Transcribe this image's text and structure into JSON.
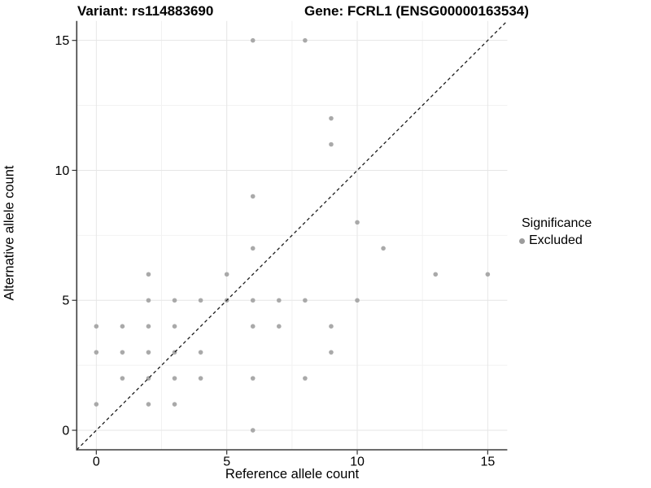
{
  "header": {
    "variant_title": "Variant: rs114883690",
    "gene_title": "Gene: FCRL1 (ENSG00000163534)"
  },
  "axes": {
    "x_label": "Reference allele count",
    "y_label": "Alternative allele count"
  },
  "legend": {
    "title": "Significance",
    "items": [
      {
        "label": "Excluded",
        "color": "#9c9c9c"
      }
    ]
  },
  "colors": {
    "background": "#ffffff",
    "point": "#a9a9a9",
    "axis_line": "#3d3d3d",
    "tick": "#333333",
    "tick_label": "#000000",
    "grid_major": "#e6e6e6",
    "grid_minor": "#f2f2f2",
    "reference_line": "#1c1c1c"
  },
  "chart_data": {
    "type": "scatter",
    "title": "Variant: rs114883690 / Gene: FCRL1 (ENSG00000163534)",
    "xlabel": "Reference allele count",
    "ylabel": "Alternative allele count",
    "xlim": [
      -0.75,
      15.75
    ],
    "ylim": [
      -0.75,
      15.75
    ],
    "x_ticks": [
      0,
      5,
      10,
      15
    ],
    "y_ticks": [
      0,
      5,
      10,
      15
    ],
    "minor_gridlines_x": [
      2.5,
      7.5,
      12.5
    ],
    "minor_gridlines_y": [
      2.5,
      7.5,
      12.5
    ],
    "grid": true,
    "legend_position": "right-middle",
    "series": [
      {
        "name": "Excluded",
        "color": "#a9a9a9",
        "points": [
          [
            0,
            1
          ],
          [
            0,
            3
          ],
          [
            0,
            4
          ],
          [
            1,
            2
          ],
          [
            1,
            3
          ],
          [
            1,
            4
          ],
          [
            2,
            1
          ],
          [
            2,
            2
          ],
          [
            2,
            3
          ],
          [
            2,
            4
          ],
          [
            2,
            5
          ],
          [
            2,
            6
          ],
          [
            3,
            1
          ],
          [
            3,
            2
          ],
          [
            3,
            3
          ],
          [
            3,
            4
          ],
          [
            3,
            5
          ],
          [
            4,
            2
          ],
          [
            4,
            3
          ],
          [
            4,
            5
          ],
          [
            5,
            5
          ],
          [
            5,
            6
          ],
          [
            6,
            0
          ],
          [
            6,
            2
          ],
          [
            6,
            4
          ],
          [
            6,
            5
          ],
          [
            6,
            7
          ],
          [
            6,
            9
          ],
          [
            6,
            15
          ],
          [
            7,
            4
          ],
          [
            7,
            5
          ],
          [
            8,
            2
          ],
          [
            8,
            5
          ],
          [
            8,
            15
          ],
          [
            9,
            3
          ],
          [
            9,
            4
          ],
          [
            9,
            11
          ],
          [
            9,
            12
          ],
          [
            10,
            5
          ],
          [
            10,
            8
          ],
          [
            11,
            7
          ],
          [
            13,
            6
          ],
          [
            15,
            6
          ]
        ]
      }
    ],
    "reference_line": {
      "style": "dashed",
      "from": [
        -0.75,
        -0.75
      ],
      "to": [
        15.75,
        15.75
      ],
      "note": "identity line y = x"
    }
  }
}
